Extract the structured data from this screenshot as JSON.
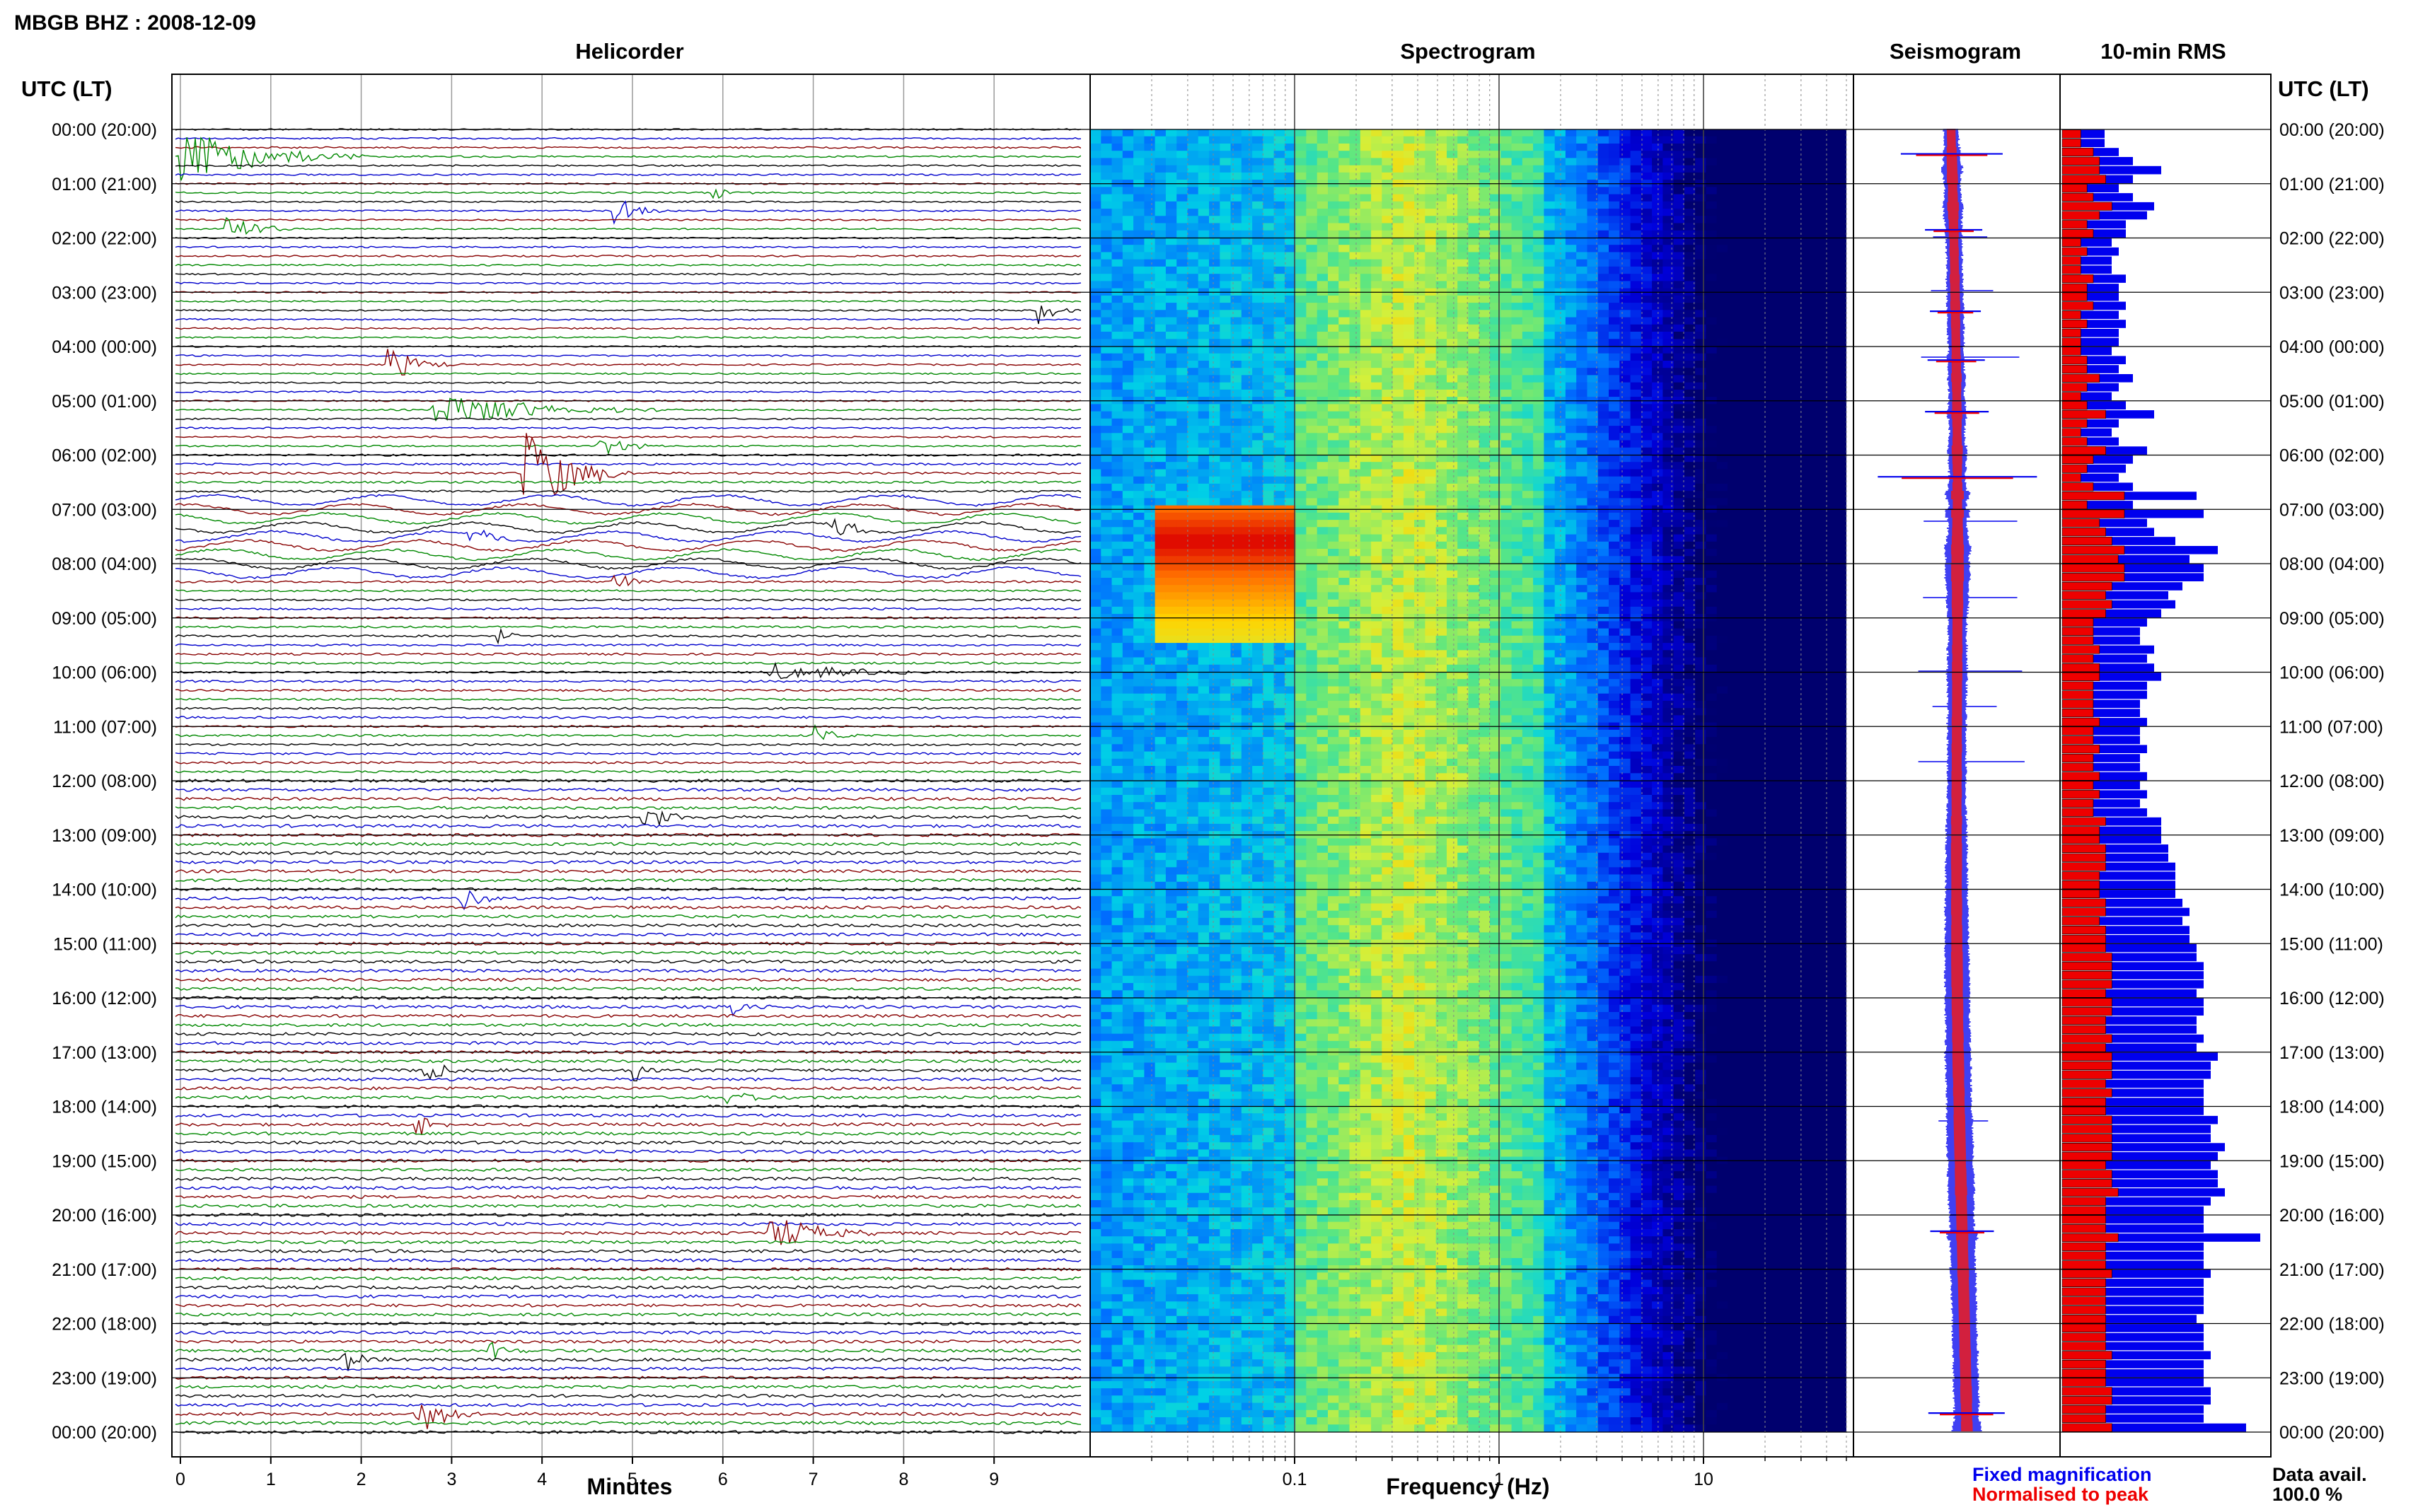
{
  "header": {
    "station_title": "MBGB BHZ : 2008-12-09"
  },
  "panels": {
    "helicorder": "Helicorder",
    "spectrogram": "Spectrogram",
    "seismogram": "Seismogram",
    "rms": "10-min RMS"
  },
  "axis_labels": {
    "time_left": "UTC (LT)",
    "time_right": "UTC (LT)",
    "minutes": "Minutes",
    "frequency": "Frequency (Hz)"
  },
  "legend": {
    "fixed": "Fixed magnification",
    "normalised": "Normalised to peak",
    "fixed_color": "#0000ee",
    "normalised_color": "#ee0000"
  },
  "data_avail": {
    "label": "Data avail.",
    "value": "100.0 %"
  },
  "time_ticks": [
    "00:00 (20:00)",
    "01:00 (21:00)",
    "02:00 (22:00)",
    "03:00 (23:00)",
    "04:00 (00:00)",
    "05:00 (01:00)",
    "06:00 (02:00)",
    "07:00 (03:00)",
    "08:00 (04:00)",
    "09:00 (05:00)",
    "10:00 (06:00)",
    "11:00 (07:00)",
    "12:00 (08:00)",
    "13:00 (09:00)",
    "14:00 (10:00)",
    "15:00 (11:00)",
    "16:00 (12:00)",
    "17:00 (13:00)",
    "18:00 (14:00)",
    "19:00 (15:00)",
    "20:00 (16:00)",
    "21:00 (17:00)",
    "22:00 (18:00)",
    "23:00 (19:00)",
    "00:00 (20:00)"
  ],
  "minute_ticks": [
    "0",
    "1",
    "2",
    "3",
    "4",
    "5",
    "6",
    "7",
    "8",
    "9"
  ],
  "freq_ticks": [
    "0.1",
    "1",
    "10"
  ],
  "colors": {
    "trace_colors": [
      "#000000",
      "#0000cc",
      "#880000",
      "#008800"
    ],
    "rms_fixed": "#0000ee",
    "rms_normalised": "#ee0000",
    "spectrogram_low": "#00008b",
    "spectrogram_high": "#e00000"
  },
  "chart_data": {
    "type": "heatmap",
    "title": "MBGB BHZ : 2008-12-09",
    "panels": [
      "Helicorder",
      "Spectrogram",
      "Seismogram",
      "10-min RMS"
    ],
    "time_range_utc_hours": [
      0,
      24
    ],
    "helicorder": {
      "xlabel": "Minutes",
      "xlim": [
        0,
        10
      ],
      "line_interval_min": 10,
      "events": [
        {
          "hour": 0.45,
          "minute": 0.0,
          "duration_min": 2.0,
          "amp": 1.6
        },
        {
          "hour": 1.2,
          "minute": 5.9,
          "duration_min": 0.5,
          "amp": 0.3
        },
        {
          "hour": 1.55,
          "minute": 4.8,
          "duration_min": 0.6,
          "amp": 0.7
        },
        {
          "hour": 1.85,
          "minute": 0.5,
          "duration_min": 0.7,
          "amp": 0.9
        },
        {
          "hour": 3.35,
          "minute": 9.5,
          "duration_min": 0.4,
          "amp": 0.8
        },
        {
          "hour": 4.25,
          "minute": 2.3,
          "duration_min": 0.7,
          "amp": 0.9
        },
        {
          "hour": 5.2,
          "minute": 2.8,
          "duration_min": 2.5,
          "amp": 1.0
        },
        {
          "hour": 5.8,
          "minute": 4.6,
          "duration_min": 0.7,
          "amp": 0.6
        },
        {
          "hour": 6.4,
          "minute": 3.8,
          "duration_min": 1.2,
          "amp": 2.5
        },
        {
          "hour": 7.45,
          "minute": 3.2,
          "duration_min": 0.5,
          "amp": 0.7
        },
        {
          "hour": 7.3,
          "minute": 7.2,
          "duration_min": 0.6,
          "amp": 0.6
        },
        {
          "hour": 8.35,
          "minute": 4.8,
          "duration_min": 0.4,
          "amp": 0.6
        },
        {
          "hour": 9.35,
          "minute": 3.5,
          "duration_min": 0.4,
          "amp": 0.4
        },
        {
          "hour": 10.0,
          "minute": 6.5,
          "duration_min": 2.0,
          "amp": 0.5
        },
        {
          "hour": 11.15,
          "minute": 7.0,
          "duration_min": 0.6,
          "amp": 0.5
        },
        {
          "hour": 12.7,
          "minute": 5.1,
          "duration_min": 0.7,
          "amp": 0.7
        },
        {
          "hour": 14.1,
          "minute": 3.1,
          "duration_min": 0.6,
          "amp": 0.6
        },
        {
          "hour": 16.2,
          "minute": 6.1,
          "duration_min": 0.6,
          "amp": 0.6
        },
        {
          "hour": 17.35,
          "minute": 2.7,
          "duration_min": 0.5,
          "amp": 0.6
        },
        {
          "hour": 17.35,
          "minute": 5.0,
          "duration_min": 0.5,
          "amp": 0.6
        },
        {
          "hour": 17.8,
          "minute": 6.0,
          "duration_min": 1.0,
          "amp": 0.4
        },
        {
          "hour": 18.35,
          "minute": 2.6,
          "duration_min": 0.5,
          "amp": 0.7
        },
        {
          "hour": 20.3,
          "minute": 6.5,
          "duration_min": 1.2,
          "amp": 1.0
        },
        {
          "hour": 22.5,
          "minute": 3.4,
          "duration_min": 0.5,
          "amp": 0.6
        },
        {
          "hour": 22.65,
          "minute": 1.8,
          "duration_min": 0.5,
          "amp": 0.6
        },
        {
          "hour": 23.65,
          "minute": 2.6,
          "duration_min": 0.8,
          "amp": 1.2
        }
      ]
    },
    "spectrogram": {
      "xlabel": "Frequency (Hz)",
      "xscale": "log",
      "xlim": [
        0.01,
        50
      ],
      "microseism_peak_hz": 0.35,
      "bright_event": {
        "hours": [
          7.0,
          9.5
        ],
        "freq_hz": [
          0.02,
          0.1
        ]
      }
    },
    "rms": {
      "series": [
        {
          "name": "Fixed magnification",
          "values": [
            0.6,
            0.6,
            0.8,
            1.0,
            1.4,
            1.0,
            0.8,
            1.0,
            1.3,
            1.2,
            0.9,
            0.9,
            0.7,
            0.8,
            0.7,
            0.7,
            0.9,
            0.8,
            0.8,
            0.9,
            0.8,
            0.9,
            0.8,
            0.8,
            0.7,
            0.9,
            0.8,
            1.0,
            0.8,
            0.7,
            0.9,
            1.3,
            0.8,
            0.7,
            0.8,
            1.2,
            1.0,
            0.9,
            0.8,
            1.0,
            1.9,
            1.0,
            2.0,
            1.2,
            1.3,
            1.6,
            2.2,
            1.8,
            2.0,
            2.0,
            1.7,
            1.5,
            1.6,
            1.4,
            1.2,
            1.1,
            1.1,
            1.3,
            1.2,
            1.3,
            1.4,
            1.2,
            1.2,
            1.1,
            1.1,
            1.2,
            1.1,
            1.1,
            1.2,
            1.1,
            1.1,
            1.2,
            1.1,
            1.2,
            1.1,
            1.2,
            1.4,
            1.4,
            1.4,
            1.5,
            1.5,
            1.6,
            1.6,
            1.6,
            1.6,
            1.7,
            1.8,
            1.7,
            1.8,
            1.8,
            1.9,
            1.9,
            2.0,
            2.0,
            2.0,
            1.9,
            2.0,
            2.0,
            1.9,
            1.9,
            2.0,
            1.9,
            2.2,
            2.1,
            2.1,
            2.0,
            2.0,
            2.0,
            2.0,
            2.2,
            2.1,
            2.1,
            2.3,
            2.2,
            2.1,
            2.2,
            2.2,
            2.3,
            2.1,
            2.0,
            2.0,
            2.0,
            2.8,
            2.0,
            2.0,
            2.0,
            2.1,
            2.0,
            2.0,
            2.0,
            2.0,
            1.9,
            2.0,
            2.0,
            2.0,
            2.1,
            2.0,
            2.0,
            2.0,
            2.1,
            2.1,
            2.0,
            2.0,
            2.6
          ]
        },
        {
          "name": "Normalised to peak",
          "values": [
            0.3,
            0.3,
            0.5,
            0.6,
            0.6,
            0.7,
            0.4,
            0.5,
            0.8,
            0.6,
            0.4,
            0.5,
            0.3,
            0.4,
            0.3,
            0.3,
            0.5,
            0.4,
            0.4,
            0.5,
            0.3,
            0.4,
            0.3,
            0.3,
            0.3,
            0.4,
            0.4,
            0.6,
            0.4,
            0.3,
            0.4,
            0.7,
            0.4,
            0.3,
            0.4,
            0.7,
            0.5,
            0.4,
            0.3,
            0.5,
            1.0,
            0.4,
            1.0,
            0.6,
            0.7,
            0.8,
            1.0,
            0.9,
            1.0,
            1.0,
            0.8,
            0.7,
            0.8,
            0.7,
            0.5,
            0.5,
            0.5,
            0.6,
            0.5,
            0.6,
            0.6,
            0.5,
            0.5,
            0.5,
            0.5,
            0.6,
            0.5,
            0.5,
            0.6,
            0.5,
            0.5,
            0.6,
            0.5,
            0.6,
            0.5,
            0.5,
            0.7,
            0.6,
            0.6,
            0.7,
            0.7,
            0.7,
            0.6,
            0.6,
            0.6,
            0.7,
            0.7,
            0.6,
            0.7,
            0.7,
            0.7,
            0.8,
            0.8,
            0.8,
            0.8,
            0.7,
            0.8,
            0.8,
            0.7,
            0.7,
            0.8,
            0.7,
            0.8,
            0.8,
            0.8,
            0.7,
            0.8,
            0.7,
            0.7,
            0.8,
            0.8,
            0.8,
            0.8,
            0.8,
            0.7,
            0.8,
            0.8,
            0.9,
            0.7,
            0.7,
            0.7,
            0.7,
            0.9,
            0.7,
            0.7,
            0.7,
            0.8,
            0.7,
            0.7,
            0.7,
            0.7,
            0.7,
            0.7,
            0.7,
            0.7,
            0.8,
            0.7,
            0.7,
            0.7,
            0.8,
            0.8,
            0.7,
            0.7,
            0.8
          ]
        }
      ]
    }
  }
}
